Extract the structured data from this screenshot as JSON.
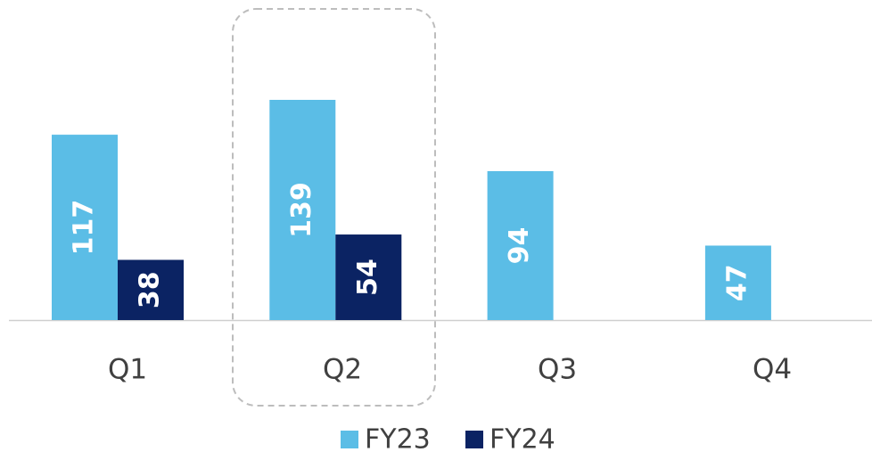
{
  "chart_data": {
    "type": "bar",
    "categories": [
      "Q1",
      "Q2",
      "Q3",
      "Q4"
    ],
    "series": [
      {
        "name": "FY23",
        "color": "#5bbde6",
        "values": [
          117,
          139,
          94,
          47
        ]
      },
      {
        "name": "FY24",
        "color": "#0b2363",
        "values": [
          38,
          54,
          null,
          null
        ]
      }
    ]
  }
}
